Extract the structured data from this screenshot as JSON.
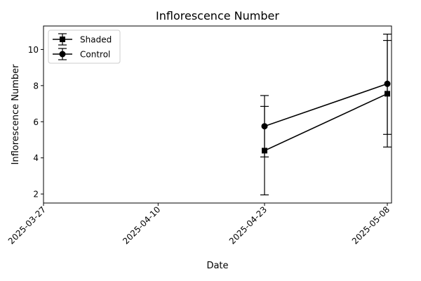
{
  "chart_data": {
    "type": "line",
    "title": "Inflorescence Number",
    "xlabel": "Date",
    "ylabel": "Inflorescence Number",
    "x_tick_labels": [
      "2025-03-27",
      "2025-04-10",
      "2025-04-23",
      "2025-05-08"
    ],
    "xlim": [
      "2025-03-27",
      "2025-05-08"
    ],
    "ylim": [
      1.5,
      11.3
    ],
    "y_ticks": [
      2,
      4,
      6,
      8,
      10
    ],
    "grid": false,
    "legend_position": "top-left",
    "series": [
      {
        "name": "Shaded",
        "marker": "square",
        "color": "#000000",
        "points": [
          {
            "x": "2025-04-23",
            "y": 4.4,
            "err_low": 1.95,
            "err_high": 6.85
          },
          {
            "x": "2025-05-08",
            "y": 7.55,
            "err_low": 4.6,
            "err_high": 10.5
          }
        ]
      },
      {
        "name": "Control",
        "marker": "circle",
        "color": "#000000",
        "points": [
          {
            "x": "2025-04-23",
            "y": 5.75,
            "err_low": 4.05,
            "err_high": 7.45
          },
          {
            "x": "2025-05-08",
            "y": 8.1,
            "err_low": 5.3,
            "err_high": 10.85
          }
        ]
      }
    ]
  }
}
